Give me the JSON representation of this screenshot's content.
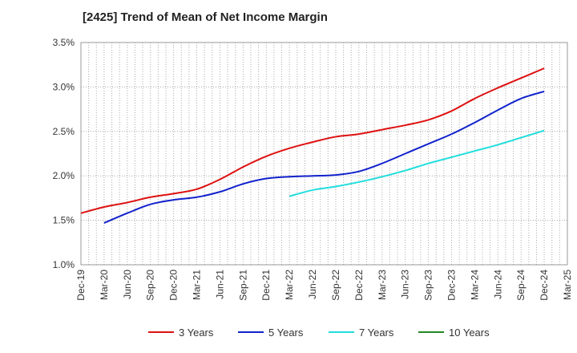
{
  "title": "[2425]  Trend of Mean of Net Income Margin",
  "chart_data": {
    "type": "line",
    "title": "[2425]  Trend of Mean of Net Income Margin",
    "xlabel": "",
    "ylabel": "",
    "ylim": [
      1.0,
      3.5
    ],
    "y_ticks": [
      "1.0%",
      "1.5%",
      "2.0%",
      "2.5%",
      "3.0%",
      "3.5%"
    ],
    "y_tick_values": [
      1.0,
      1.5,
      2.0,
      2.5,
      3.0,
      3.5
    ],
    "x_tick_labels": [
      "Dec-19",
      "Mar-20",
      "Jun-20",
      "Sep-20",
      "Dec-20",
      "Mar-21",
      "Jun-21",
      "Sep-21",
      "Dec-21",
      "Mar-22",
      "Jun-22",
      "Sep-22",
      "Dec-22",
      "Mar-23",
      "Jun-23",
      "Sep-23",
      "Dec-23",
      "Mar-24",
      "Jun-24",
      "Sep-24",
      "Dec-24",
      "Mar-25"
    ],
    "x_months": [
      "Dec-19",
      "Jan-20",
      "Feb-20",
      "Mar-20",
      "Apr-20",
      "May-20",
      "Jun-20",
      "Jul-20",
      "Aug-20",
      "Sep-20",
      "Oct-20",
      "Nov-20",
      "Dec-20",
      "Jan-21",
      "Feb-21",
      "Mar-21",
      "Apr-21",
      "May-21",
      "Jun-21",
      "Jul-21",
      "Aug-21",
      "Sep-21",
      "Oct-21",
      "Nov-21",
      "Dec-21",
      "Jan-22",
      "Feb-22",
      "Mar-22",
      "Apr-22",
      "May-22",
      "Jun-22",
      "Jul-22",
      "Aug-22",
      "Sep-22",
      "Oct-22",
      "Nov-22",
      "Dec-22",
      "Jan-23",
      "Feb-23",
      "Mar-23",
      "Apr-23",
      "May-23",
      "Jun-23",
      "Jul-23",
      "Aug-23",
      "Sep-23",
      "Oct-23",
      "Nov-23",
      "Dec-23",
      "Jan-24",
      "Feb-24",
      "Mar-24",
      "Apr-24",
      "May-24",
      "Jun-24",
      "Jul-24",
      "Aug-24",
      "Sep-24",
      "Oct-24",
      "Nov-24",
      "Dec-24",
      "Jan-25",
      "Feb-25",
      "Mar-25"
    ],
    "grid": true,
    "legend_position": "bottom",
    "series": [
      {
        "name": "3 Years",
        "color": "#dd1111",
        "points": [
          [
            "Dec-19",
            1.58
          ],
          [
            "Mar-20",
            1.65
          ],
          [
            "Jun-20",
            1.7
          ],
          [
            "Sep-20",
            1.76
          ],
          [
            "Dec-20",
            1.8
          ],
          [
            "Mar-21",
            1.85
          ],
          [
            "Jun-21",
            1.96
          ],
          [
            "Sep-21",
            2.1
          ],
          [
            "Dec-21",
            2.22
          ],
          [
            "Mar-22",
            2.31
          ],
          [
            "Jun-22",
            2.38
          ],
          [
            "Sep-22",
            2.44
          ],
          [
            "Dec-22",
            2.47
          ],
          [
            "Mar-23",
            2.52
          ],
          [
            "Jun-23",
            2.57
          ],
          [
            "Sep-23",
            2.63
          ],
          [
            "Dec-23",
            2.73
          ],
          [
            "Mar-24",
            2.87
          ],
          [
            "Jun-24",
            2.99
          ],
          [
            "Sep-24",
            3.1
          ],
          [
            "Dec-24",
            3.21
          ]
        ]
      },
      {
        "name": "5 Years",
        "color": "#1122cc",
        "points": [
          [
            "Mar-20",
            1.47
          ],
          [
            "Jun-20",
            1.58
          ],
          [
            "Sep-20",
            1.68
          ],
          [
            "Dec-20",
            1.73
          ],
          [
            "Mar-21",
            1.76
          ],
          [
            "Jun-21",
            1.82
          ],
          [
            "Sep-21",
            1.91
          ],
          [
            "Dec-21",
            1.97
          ],
          [
            "Mar-22",
            1.99
          ],
          [
            "Jun-22",
            2.0
          ],
          [
            "Sep-22",
            2.01
          ],
          [
            "Dec-22",
            2.05
          ],
          [
            "Mar-23",
            2.14
          ],
          [
            "Jun-23",
            2.25
          ],
          [
            "Sep-23",
            2.36
          ],
          [
            "Dec-23",
            2.47
          ],
          [
            "Mar-24",
            2.6
          ],
          [
            "Jun-24",
            2.74
          ],
          [
            "Sep-24",
            2.87
          ],
          [
            "Dec-24",
            2.95
          ]
        ]
      },
      {
        "name": "7 Years",
        "color": "#22dddd",
        "points": [
          [
            "Mar-22",
            1.77
          ],
          [
            "Jun-22",
            1.84
          ],
          [
            "Sep-22",
            1.88
          ],
          [
            "Dec-22",
            1.93
          ],
          [
            "Mar-23",
            1.99
          ],
          [
            "Jun-23",
            2.06
          ],
          [
            "Sep-23",
            2.14
          ],
          [
            "Dec-23",
            2.21
          ],
          [
            "Mar-24",
            2.28
          ],
          [
            "Jun-24",
            2.35
          ],
          [
            "Sep-24",
            2.43
          ],
          [
            "Dec-24",
            2.51
          ]
        ]
      },
      {
        "name": "10 Years",
        "color": "#228822",
        "points": []
      }
    ]
  }
}
